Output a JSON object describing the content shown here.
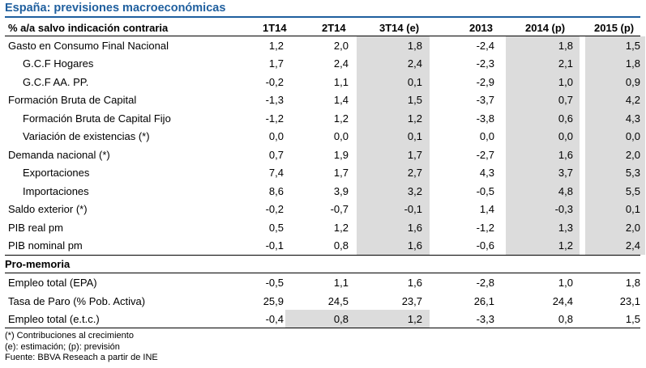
{
  "title": "España: previsiones macroeconómicas",
  "header": {
    "label": "% a/a salvo indicación contraria",
    "columns": [
      "1T14",
      "2T14",
      "3T14 (e)",
      "2013",
      "2014 (p)",
      "2015 (p)"
    ]
  },
  "rows_main": [
    {
      "label": "Gasto en Consumo Final Nacional",
      "indent": 0,
      "values": [
        "1,2",
        "2,0",
        "1,8",
        "-2,4",
        "1,8",
        "1,5"
      ]
    },
    {
      "label": "G.C.F Hogares",
      "indent": 1,
      "values": [
        "1,7",
        "2,4",
        "2,4",
        "-2,3",
        "2,1",
        "1,8"
      ]
    },
    {
      "label": "G.C.F AA. PP.",
      "indent": 1,
      "values": [
        "-0,2",
        "1,1",
        "0,1",
        "-2,9",
        "1,0",
        "0,9"
      ]
    },
    {
      "label": "Formación Bruta de Capital",
      "indent": 0,
      "values": [
        "-1,3",
        "1,4",
        "1,5",
        "-3,7",
        "0,7",
        "4,2"
      ]
    },
    {
      "label": "Formación Bruta de Capital Fijo",
      "indent": 1,
      "values": [
        "-1,2",
        "1,2",
        "1,2",
        "-3,8",
        "0,6",
        "4,3"
      ]
    },
    {
      "label": "Variación de existencias (*)",
      "indent": 1,
      "values": [
        "0,0",
        "0,0",
        "0,1",
        "0,0",
        "0,0",
        "0,0"
      ]
    },
    {
      "label": "Demanda nacional (*)",
      "indent": 0,
      "values": [
        "0,7",
        "1,9",
        "1,7",
        "-2,7",
        "1,6",
        "2,0"
      ]
    },
    {
      "label": "Exportaciones",
      "indent": 1,
      "values": [
        "7,4",
        "1,7",
        "2,7",
        "4,3",
        "3,7",
        "5,3"
      ]
    },
    {
      "label": "Importaciones",
      "indent": 1,
      "values": [
        "8,6",
        "3,9",
        "3,2",
        "-0,5",
        "4,8",
        "5,5"
      ]
    },
    {
      "label": "Saldo exterior (*)",
      "indent": 0,
      "values": [
        "-0,2",
        "-0,7",
        "-0,1",
        "1,4",
        "-0,3",
        "0,1"
      ]
    },
    {
      "label": "PIB real pm",
      "indent": 0,
      "values": [
        "0,5",
        "1,2",
        "1,6",
        "-1,2",
        "1,3",
        "2,0"
      ]
    },
    {
      "label": "PIB nominal pm",
      "indent": 0,
      "values": [
        "-0,1",
        "0,8",
        "1,6",
        "-0,6",
        "1,2",
        "2,4"
      ]
    }
  ],
  "pro_memoria": "Pro-memoria",
  "rows_memo": [
    {
      "label": "Empleo total (EPA)",
      "indent": 0,
      "values": [
        "-0,5",
        "1,1",
        "1,6",
        "-2,8",
        "1,0",
        "1,8"
      ]
    },
    {
      "label": "Tasa de Paro (% Pob. Activa)",
      "indent": 0,
      "values": [
        "25,9",
        "24,5",
        "23,7",
        "26,1",
        "24,4",
        "23,1"
      ]
    },
    {
      "label": "Empleo total (e.t.c.)",
      "indent": 0,
      "values": [
        "-0,4",
        "0,8",
        "1,2",
        "-3,3",
        "0,8",
        "1,5"
      ]
    }
  ],
  "notes": [
    "(*) Contribuciones al crecimiento",
    "(e): estimación; (p): previsión",
    "Fuente: BBVA Reseach a partir de INE"
  ],
  "colors": {
    "title": "#1f5f9e",
    "shade": "#dcdcdc"
  }
}
